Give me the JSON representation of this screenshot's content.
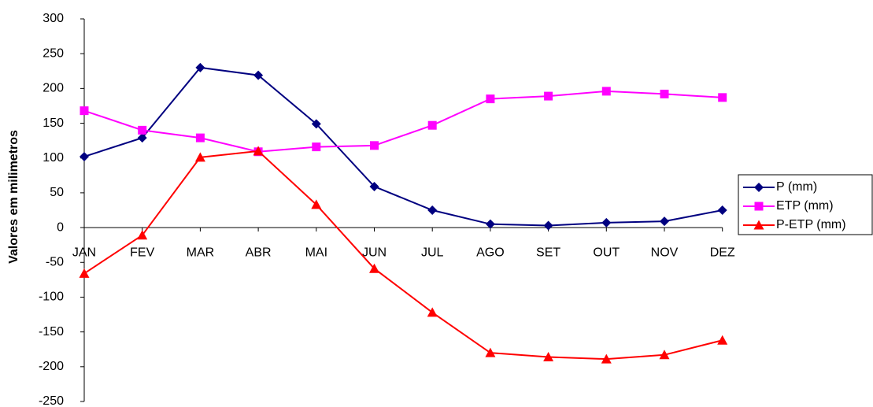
{
  "chart_data": {
    "type": "line",
    "y_label": "Valores em milimetros",
    "categories": [
      "JAN",
      "FEV",
      "MAR",
      "ABR",
      "MAI",
      "JUN",
      "JUL",
      "AGO",
      "SET",
      "OUT",
      "NOV",
      "DEZ"
    ],
    "series": [
      {
        "name": "P (mm)",
        "color": "#000080",
        "marker": "diamond",
        "values": [
          102,
          129,
          230,
          219,
          149,
          59,
          25,
          5,
          3,
          7,
          9,
          25
        ]
      },
      {
        "name": "ETP (mm)",
        "color": "#ff00ff",
        "marker": "square",
        "values": [
          168,
          140,
          129,
          109,
          116,
          118,
          147,
          185,
          189,
          196,
          192,
          187
        ]
      },
      {
        "name": "P-ETP (mm)",
        "color": "#ff0000",
        "marker": "triangle",
        "values": [
          -66,
          -11,
          101,
          110,
          33,
          -59,
          -122,
          -180,
          -186,
          -189,
          -183,
          -162
        ]
      }
    ],
    "ylim": [
      -250,
      300
    ],
    "yticks": [
      -250,
      -200,
      -150,
      -100,
      -50,
      0,
      50,
      100,
      150,
      200,
      250,
      300
    ],
    "grid": false,
    "legend": "right"
  }
}
